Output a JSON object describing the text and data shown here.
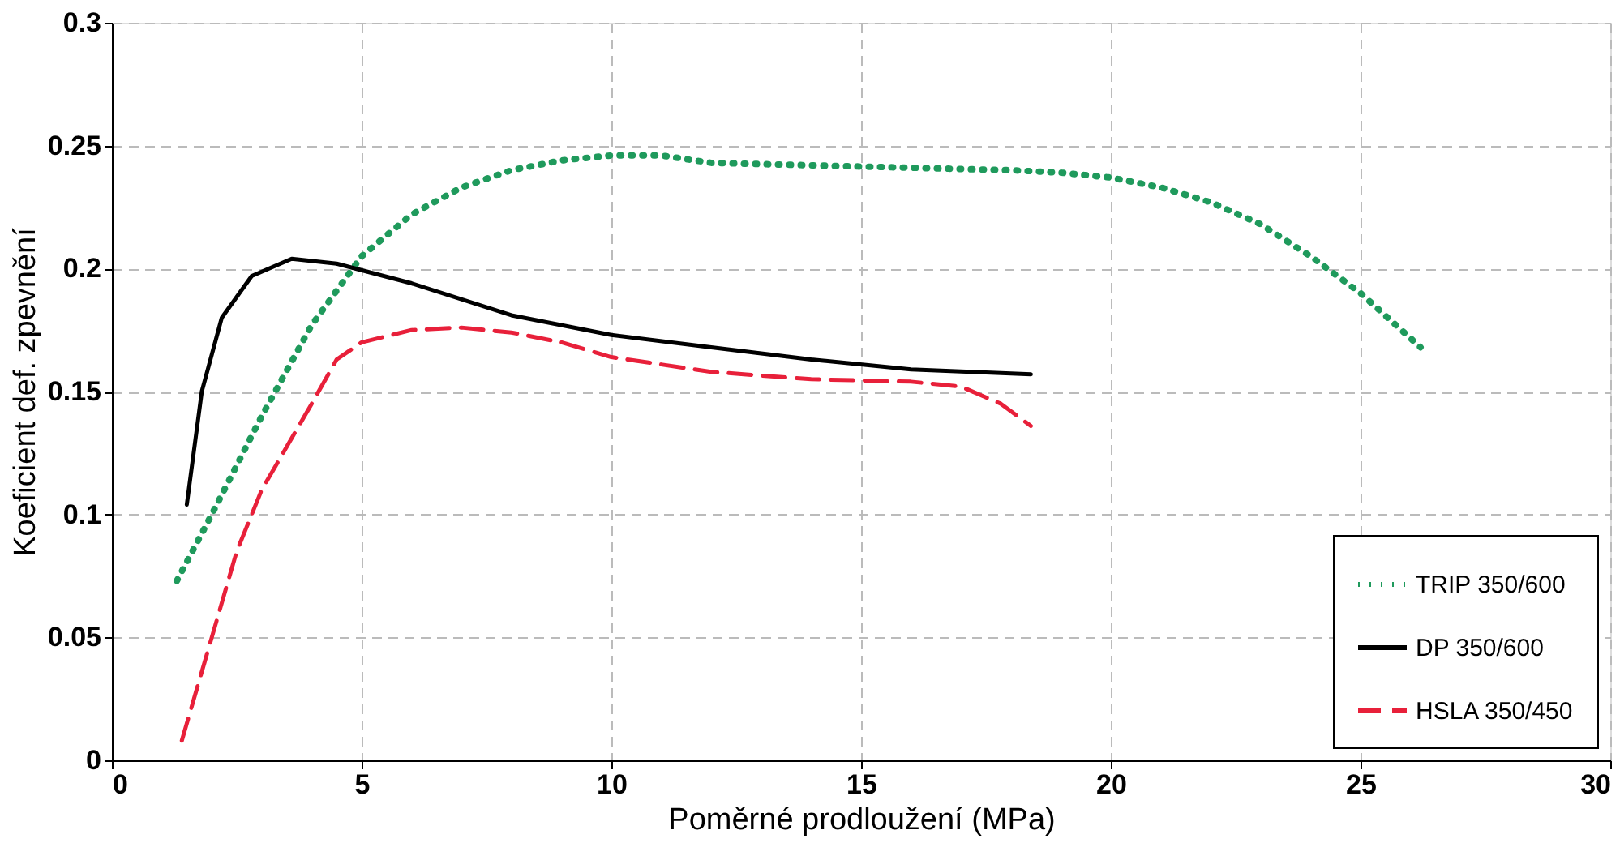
{
  "chart_data": {
    "type": "line",
    "xlabel": "Poměrné prodloužení (MPa)",
    "ylabel": "Koeficient def. zpevnění",
    "xlim": [
      0,
      30
    ],
    "xticks": [
      0,
      5,
      10,
      15,
      20,
      25,
      30
    ],
    "ylim": [
      0,
      0.3
    ],
    "yticks": [
      0,
      0.05,
      0.1,
      0.15,
      0.2,
      0.25,
      0.3
    ],
    "grid": true,
    "legend": "bottom right",
    "series": [
      {
        "name": "TRIP 350/600",
        "color": "#1f9a5c",
        "line_style": "dotted",
        "x": [
          1.3,
          2,
          3,
          4,
          5,
          6,
          7,
          8,
          9,
          10,
          11,
          12,
          14,
          16,
          18,
          19,
          20,
          21,
          22,
          23,
          24,
          25,
          26.2
        ],
        "values": [
          0.073,
          0.1,
          0.14,
          0.177,
          0.205,
          0.222,
          0.233,
          0.24,
          0.244,
          0.246,
          0.246,
          0.243,
          0.242,
          0.241,
          0.24,
          0.239,
          0.237,
          0.233,
          0.227,
          0.218,
          0.205,
          0.19,
          0.168
        ]
      },
      {
        "name": "DP 350/600",
        "color": "#000000",
        "line_style": "solid",
        "x": [
          1.5,
          1.8,
          2.2,
          2.8,
          3.6,
          4.5,
          6,
          8,
          10,
          12,
          14,
          16,
          18.4
        ],
        "values": [
          0.104,
          0.15,
          0.18,
          0.197,
          0.204,
          0.202,
          0.194,
          0.181,
          0.173,
          0.168,
          0.163,
          0.159,
          0.157
        ]
      },
      {
        "name": "HSLA 350/450",
        "color": "#e8203a",
        "line_style": "dashed",
        "x": [
          1.4,
          2,
          2.5,
          3,
          4,
          4.5,
          5,
          6,
          7,
          8,
          9,
          10,
          12,
          14,
          16,
          17,
          17.8,
          18.4
        ],
        "values": [
          0.008,
          0.05,
          0.085,
          0.11,
          0.145,
          0.163,
          0.17,
          0.175,
          0.176,
          0.174,
          0.17,
          0.164,
          0.158,
          0.155,
          0.154,
          0.152,
          0.145,
          0.136
        ]
      }
    ]
  }
}
